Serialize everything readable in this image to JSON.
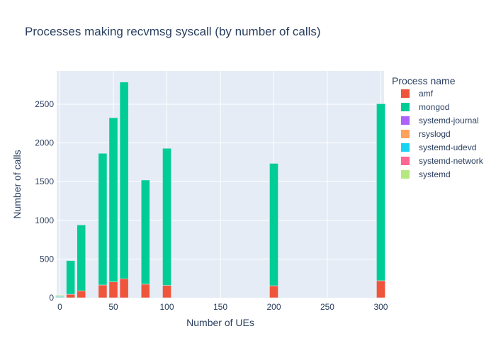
{
  "chart_data": {
    "type": "bar",
    "stacked": true,
    "title": "Processes making recvmsg syscall (by number of calls)",
    "xlabel": "Number of UEs",
    "ylabel": "Number of calls",
    "xlim": [
      -3,
      303
    ],
    "ylim": [
      0,
      2930
    ],
    "xticks": [
      0,
      50,
      100,
      150,
      200,
      250,
      300
    ],
    "yticks": [
      0,
      500,
      1000,
      1500,
      2000,
      2500
    ],
    "grid": true,
    "legend_title": "Process name",
    "legend_position": "right",
    "x": [
      0,
      10,
      20,
      40,
      50,
      60,
      80,
      100,
      200,
      300
    ],
    "series": [
      {
        "name": "amf",
        "color": "#EF553B",
        "values": [
          5,
          45,
          90,
          165,
          205,
          245,
          175,
          160,
          155,
          220
        ]
      },
      {
        "name": "mongod",
        "color": "#00CC96",
        "values": [
          10,
          435,
          850,
          1700,
          2120,
          2540,
          1345,
          1770,
          1580,
          2285
        ]
      },
      {
        "name": "systemd-journal",
        "color": "#AB63FA",
        "values": [
          0,
          0,
          0,
          0,
          0,
          0,
          0,
          0,
          0,
          0
        ]
      },
      {
        "name": "rsyslogd",
        "color": "#FFA15A",
        "values": [
          3,
          0,
          0,
          0,
          0,
          0,
          0,
          0,
          0,
          0
        ]
      },
      {
        "name": "systemd-udevd",
        "color": "#19D3F3",
        "values": [
          3,
          0,
          0,
          0,
          0,
          0,
          0,
          0,
          0,
          0
        ]
      },
      {
        "name": "systemd-network",
        "color": "#FF6692",
        "values": [
          3,
          0,
          0,
          0,
          0,
          0,
          0,
          0,
          0,
          0
        ]
      },
      {
        "name": "systemd",
        "color": "#B6E880",
        "values": [
          10,
          0,
          0,
          0,
          0,
          0,
          0,
          0,
          0,
          0
        ]
      }
    ]
  }
}
